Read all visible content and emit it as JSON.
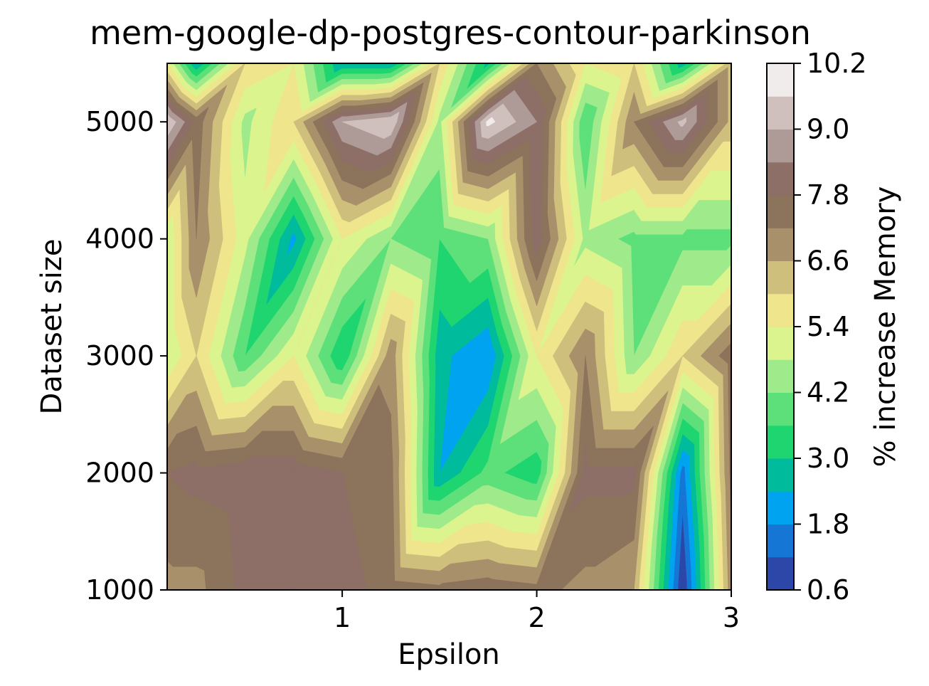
{
  "chart_data": {
    "type": "contour",
    "title": "mem-google-dp-postgres-contour-parkinson",
    "xlabel": "Epsilon",
    "ylabel": "Dataset size",
    "colorbar_label": "% increase Memory",
    "xlim": [
      0.1,
      3.0
    ],
    "ylim": [
      1000,
      5500
    ],
    "x_ticks": [
      1,
      2,
      3
    ],
    "y_ticks": [
      1000,
      2000,
      3000,
      4000,
      5000
    ],
    "colorbar_ticks": [
      "0.6",
      "1.8",
      "3.0",
      "4.2",
      "5.4",
      "6.6",
      "7.8",
      "9.0",
      "10.2"
    ],
    "levels": [
      0.6,
      1.2,
      1.8,
      2.4,
      3.0,
      3.6,
      4.2,
      4.8,
      5.4,
      6.0,
      6.6,
      7.2,
      7.8,
      8.4,
      9.0,
      9.6,
      10.2
    ],
    "colormap": "terrain",
    "band_colors": [
      "#2c47a8",
      "#1676d6",
      "#00a3f0",
      "#00bb9c",
      "#1fd570",
      "#5ddf79",
      "#9fea8a",
      "#dbf48e",
      "#efe58d",
      "#cfbf7c",
      "#a8906a",
      "#8c735b",
      "#8d6f68",
      "#ae9a97",
      "#cfc0bd",
      "#f0eceb"
    ],
    "grid": false,
    "x": [
      0.1,
      0.25,
      0.5,
      0.75,
      1.0,
      1.25,
      1.5,
      1.75,
      2.0,
      2.25,
      2.5,
      2.75,
      3.0
    ],
    "y": [
      1000,
      2000,
      3000,
      4000,
      5000,
      5500
    ],
    "z": [
      [
        7.0,
        7.0,
        8.0,
        8.0,
        8.0,
        7.6,
        7.4,
        7.6,
        7.4,
        7.0,
        6.6,
        0.6,
        7.0
      ],
      [
        7.8,
        8.0,
        8.2,
        8.2,
        7.8,
        7.4,
        2.4,
        3.8,
        3.2,
        8.0,
        8.0,
        1.5,
        7.4
      ],
      [
        4.8,
        6.0,
        3.6,
        5.4,
        3.0,
        7.0,
        2.6,
        1.8,
        5.4,
        7.2,
        4.2,
        6.0,
        7.6
      ],
      [
        4.8,
        7.2,
        5.0,
        2.2,
        5.4,
        4.2,
        3.6,
        4.2,
        8.2,
        4.6,
        4.0,
        4.0,
        4.0
      ],
      [
        9.6,
        7.6,
        4.6,
        6.0,
        9.0,
        9.6,
        4.6,
        9.8,
        8.4,
        3.6,
        7.2,
        9.2,
        6.4
      ],
      [
        5.4,
        2.4,
        6.0,
        5.4,
        2.4,
        2.4,
        6.0,
        2.8,
        7.2,
        5.4,
        6.0,
        2.6,
        6.4
      ]
    ]
  }
}
